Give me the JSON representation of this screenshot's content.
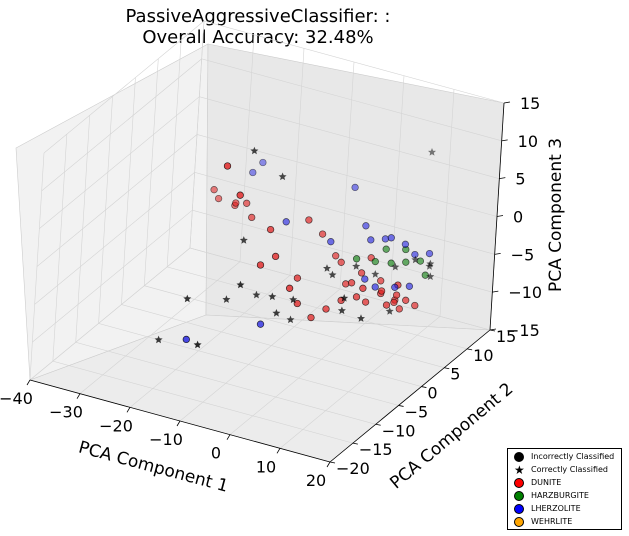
{
  "chart_data": {
    "type": "scatter3d",
    "title": "PassiveAggressiveClassifier: :",
    "subtitle": "Overall Accuracy: 32.48%",
    "xlabel": "PCA Component 1",
    "ylabel": "PCA Component 2",
    "zlabel": "PCA Component 3",
    "xticks": [
      "−40",
      "−30",
      "−20",
      "−10",
      "0",
      "10",
      "20"
    ],
    "yticks": [
      "−20",
      "−15",
      "−10",
      "−5",
      "0",
      "5",
      "10",
      "15"
    ],
    "zticks": [
      "−15",
      "−10",
      "−5",
      "0",
      "5",
      "10",
      "15"
    ],
    "xlim": [
      -40,
      20
    ],
    "ylim": [
      -20,
      15
    ],
    "zlim": [
      -15,
      15
    ],
    "legend_position": "bottom-right",
    "legend": [
      {
        "label": "Incorrectly Classified",
        "marker": "circle",
        "color": "#000000"
      },
      {
        "label": "Correctly Classified",
        "marker": "star",
        "color": "#000000"
      },
      {
        "label": "DUNITE",
        "marker": "circle",
        "color": "#ff0000"
      },
      {
        "label": "HARZBURGITE",
        "marker": "circle",
        "color": "#008000"
      },
      {
        "label": "LHERZOLITE",
        "marker": "circle",
        "color": "#0000ff"
      },
      {
        "label": "WEHRLITE",
        "marker": "circle",
        "color": "#ffa500"
      }
    ],
    "series": [
      {
        "name": "DUNITE",
        "marker": "circle",
        "color": "#e02020",
        "points": [
          [
            -14,
            -8,
            12
          ],
          [
            -12,
            -7,
            8
          ],
          [
            -30,
            8,
            -2
          ],
          [
            -29,
            8,
            -3
          ],
          [
            -24,
            6,
            -2
          ],
          [
            -23,
            5,
            -1
          ],
          [
            -20,
            4,
            0
          ],
          [
            -18,
            3,
            -1
          ],
          [
            -5,
            1,
            2
          ],
          [
            -3,
            2,
            0
          ],
          [
            -1,
            3,
            -3
          ],
          [
            1,
            2,
            -3
          ],
          [
            3,
            1,
            -5
          ],
          [
            5,
            0,
            -4
          ],
          [
            6,
            1,
            -3
          ],
          [
            7,
            -1,
            -5
          ],
          [
            8,
            0,
            -6
          ],
          [
            9,
            2,
            -4
          ],
          [
            10,
            1,
            -5
          ],
          [
            11,
            0,
            -4
          ],
          [
            12,
            2,
            -6
          ],
          [
            13,
            -1,
            -5
          ],
          [
            14,
            0,
            -4
          ],
          [
            15,
            1,
            -5
          ],
          [
            16,
            2,
            -6
          ],
          [
            -4,
            -2,
            -4
          ],
          [
            -2,
            -4,
            -6
          ],
          [
            0,
            -3,
            -8
          ],
          [
            2,
            -2,
            -7
          ],
          [
            4,
            -1,
            -6
          ],
          [
            -8,
            -6,
            -1
          ],
          [
            -6,
            -5,
            0
          ],
          [
            -9,
            -3,
            2
          ],
          [
            -2,
            -6,
            -3
          ],
          [
            6,
            3,
            -2
          ],
          [
            9,
            -2,
            -3
          ],
          [
            11,
            3,
            -7
          ],
          [
            13,
            2,
            -7
          ],
          [
            15,
            -1,
            -2
          ]
        ]
      },
      {
        "name": "HARZBURGITE",
        "marker": "circle",
        "color": "#108010",
        "points": [
          [
            8,
            4,
            -1
          ],
          [
            10,
            3,
            -2
          ],
          [
            12,
            4,
            -2
          ],
          [
            14,
            5,
            -2
          ],
          [
            16,
            4,
            -3
          ],
          [
            4,
            2,
            -2
          ],
          [
            6,
            4,
            -3
          ],
          [
            11,
            5,
            -1
          ]
        ]
      },
      {
        "name": "LHERZOLITE",
        "marker": "circle",
        "color": "#2020e0",
        "points": [
          [
            -26,
            12,
            -1
          ],
          [
            -25,
            13,
            0
          ],
          [
            -12,
            4,
            -1
          ],
          [
            -9,
            -4,
            -10
          ],
          [
            -20,
            -8,
            -12
          ],
          [
            -3,
            4,
            -2
          ],
          [
            4,
            5,
            -1
          ],
          [
            6,
            6,
            -1
          ],
          [
            8,
            5,
            0
          ],
          [
            10,
            6,
            -1
          ],
          [
            12,
            6,
            -2
          ],
          [
            14,
            7,
            -2
          ],
          [
            2,
            6,
            0
          ],
          [
            5,
            3,
            -5
          ],
          [
            8,
            2,
            -5
          ],
          [
            11,
            3,
            -5
          ],
          [
            13,
            4,
            -5
          ],
          [
            -4,
            10,
            2
          ]
        ]
      },
      {
        "name": "Correctly Classified",
        "marker": "star",
        "color": "#000000",
        "points": [
          [
            -14,
            -2,
            11
          ],
          [
            -9,
            -1,
            8
          ],
          [
            9,
            12,
            8
          ],
          [
            -16,
            -4,
            -8
          ],
          [
            -11,
            -3,
            -7
          ],
          [
            -22,
            -6,
            -8
          ],
          [
            -16,
            -10,
            -11
          ],
          [
            -28,
            -5,
            -15
          ],
          [
            -15,
            -2,
            -1
          ],
          [
            -6,
            -4,
            -8
          ],
          [
            -4,
            -3,
            -9
          ],
          [
            -10,
            -8,
            -3
          ],
          [
            4,
            2,
            -3
          ],
          [
            7,
            3,
            -4
          ],
          [
            10,
            4,
            -3
          ],
          [
            13,
            5,
            -2
          ],
          [
            15,
            6,
            -3
          ],
          [
            16,
            5,
            -2
          ],
          [
            17,
            4,
            -3
          ],
          [
            12,
            1,
            -7
          ],
          [
            9,
            -2,
            -7
          ],
          [
            6,
            -3,
            -6
          ],
          [
            0,
            0,
            -3
          ],
          [
            2,
            -1,
            -3
          ],
          [
            -2,
            -5,
            -5
          ],
          [
            -7,
            -4,
            -6
          ],
          [
            8,
            -5,
            -3
          ]
        ]
      }
    ]
  }
}
